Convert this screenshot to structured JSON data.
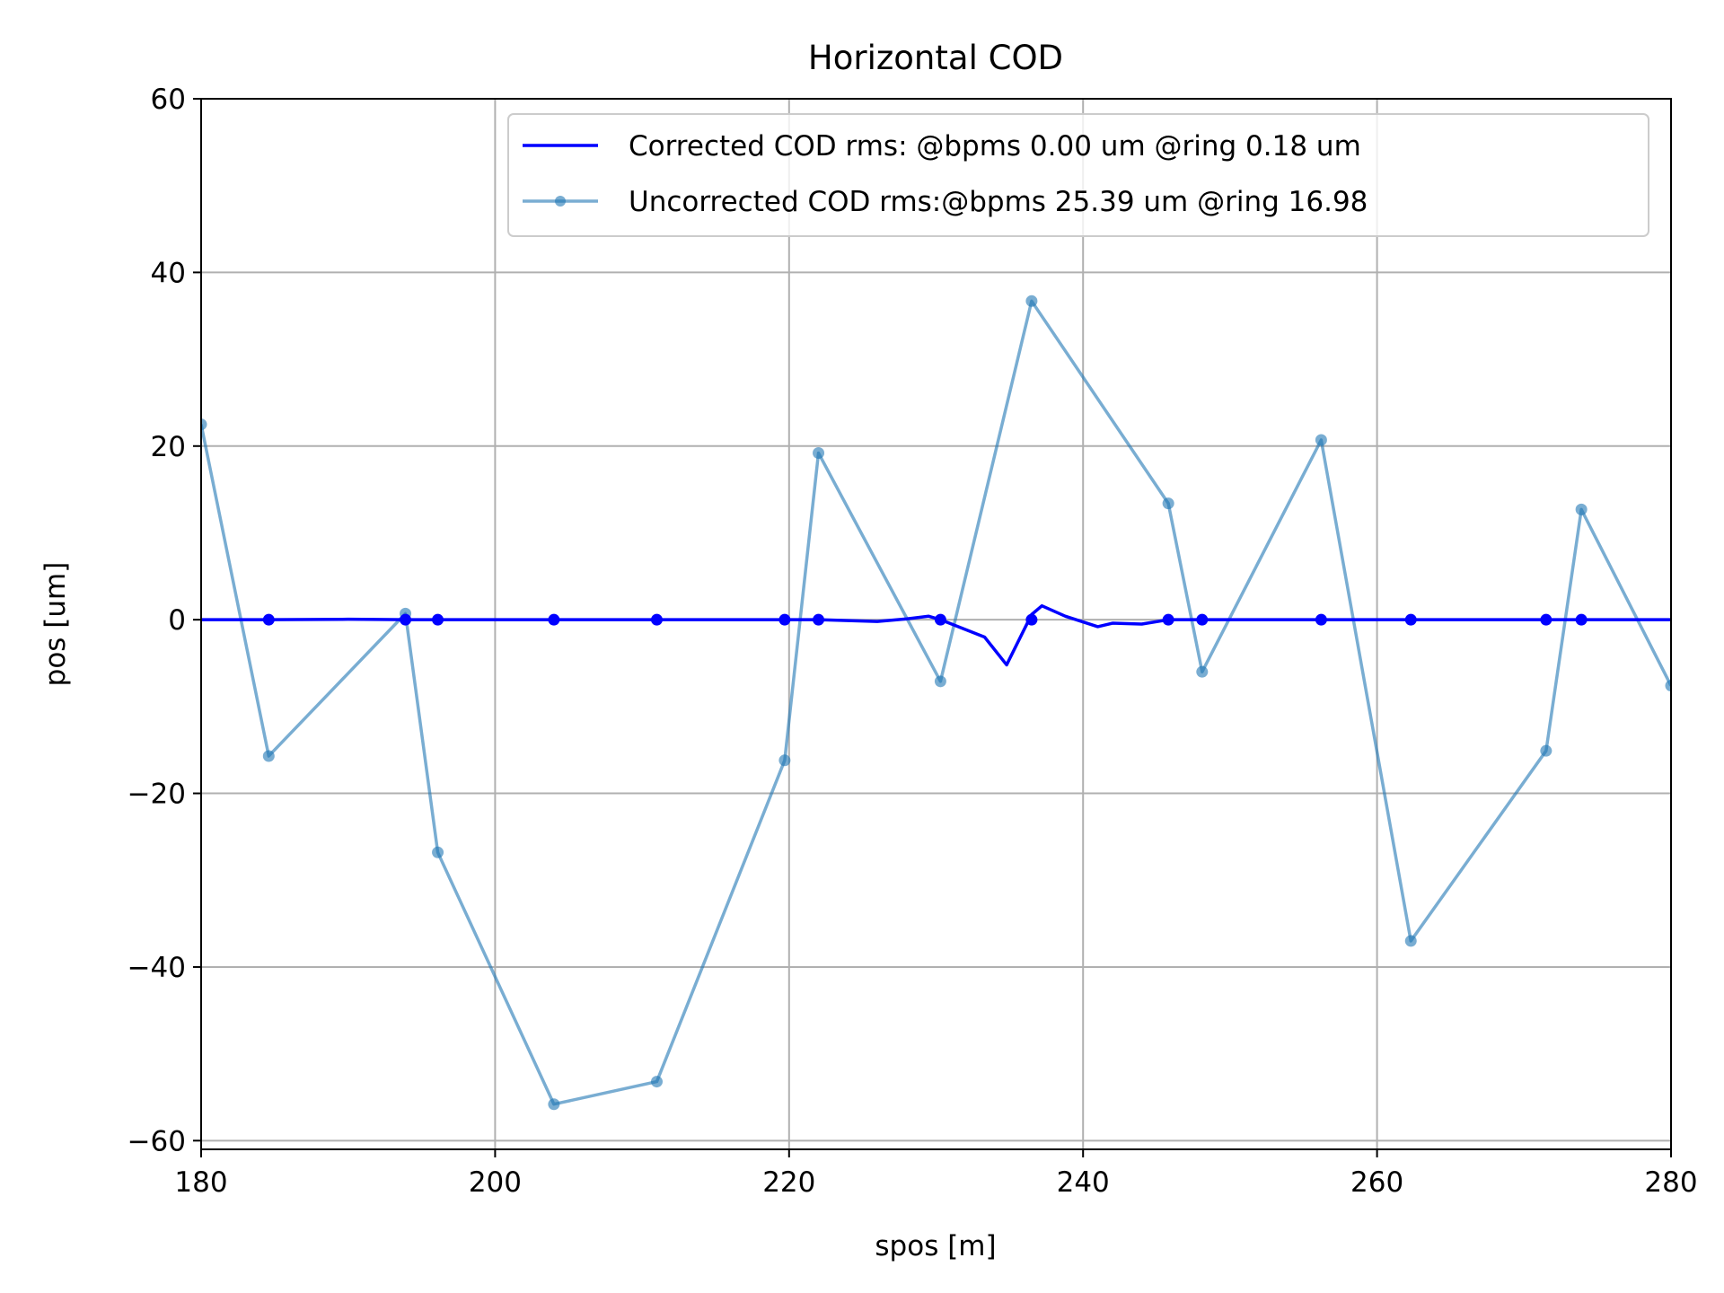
{
  "chart_data": {
    "type": "line",
    "title": "Horizontal COD",
    "xlabel": "spos [m]",
    "ylabel": "pos [um]",
    "xlim": [
      180,
      280
    ],
    "ylim": [
      -61,
      60
    ],
    "xticks": [
      180,
      200,
      220,
      240,
      260,
      280
    ],
    "yticks": [
      -60,
      -40,
      -20,
      0,
      20,
      40,
      60
    ],
    "xtick_labels": [
      "180",
      "200",
      "220",
      "240",
      "260",
      "280"
    ],
    "ytick_labels": [
      "−60",
      "−40",
      "−20",
      "0",
      "20",
      "40",
      "60"
    ],
    "grid": true,
    "legend_position": "top-right",
    "series": [
      {
        "name": "Corrected COD rms: @bpms 0.00 um @ring 0.18 um",
        "color": "#0000ff",
        "marker": "none",
        "x": [
          180,
          184.6,
          190,
          193.9,
          196.1,
          200,
          204,
          211,
          216,
          219.7,
          222,
          224,
          226,
          228,
          229.5,
          230.3,
          231.5,
          233.3,
          234.8,
          236.5,
          237.2,
          238.8,
          241,
          242,
          244,
          245.8,
          248.1,
          252,
          256.2,
          262.3,
          268,
          271.5,
          273.9,
          280
        ],
        "y": [
          0,
          0,
          0.05,
          0,
          0,
          0,
          0,
          0,
          0,
          0,
          0,
          -0.1,
          -0.2,
          0.1,
          0.4,
          0,
          -0.8,
          -2,
          -5.2,
          0.6,
          1.6,
          0.4,
          -0.8,
          -0.4,
          -0.5,
          0,
          0,
          0,
          0,
          0,
          0,
          0,
          0,
          0
        ]
      },
      {
        "name": "Uncorrected COD rms:@bpms 25.39 um @ring 16.98",
        "color": "#1f77b4",
        "marker": "circle",
        "x": [
          180,
          184.6,
          193.9,
          196.1,
          204,
          211,
          219.7,
          222,
          230.3,
          236.5,
          245.8,
          248.1,
          256.2,
          262.3,
          271.5,
          273.9,
          280
        ],
        "y": [
          22.5,
          -15.7,
          0.7,
          -26.8,
          -55.8,
          -53.2,
          -16.2,
          19.2,
          -7.1,
          36.7,
          13.4,
          -6,
          20.7,
          -37,
          -15.1,
          12.7,
          -7.6
        ]
      }
    ],
    "bpm_markers": {
      "color": "#0000ff",
      "x": [
        184.6,
        193.9,
        196.1,
        204,
        211,
        219.7,
        222,
        230.3,
        236.5,
        245.8,
        248.1,
        256.2,
        262.3,
        271.5,
        273.9
      ],
      "y": [
        0,
        0,
        0,
        0,
        0,
        0,
        0,
        0,
        0,
        0,
        0,
        0,
        0,
        0,
        0
      ]
    }
  }
}
